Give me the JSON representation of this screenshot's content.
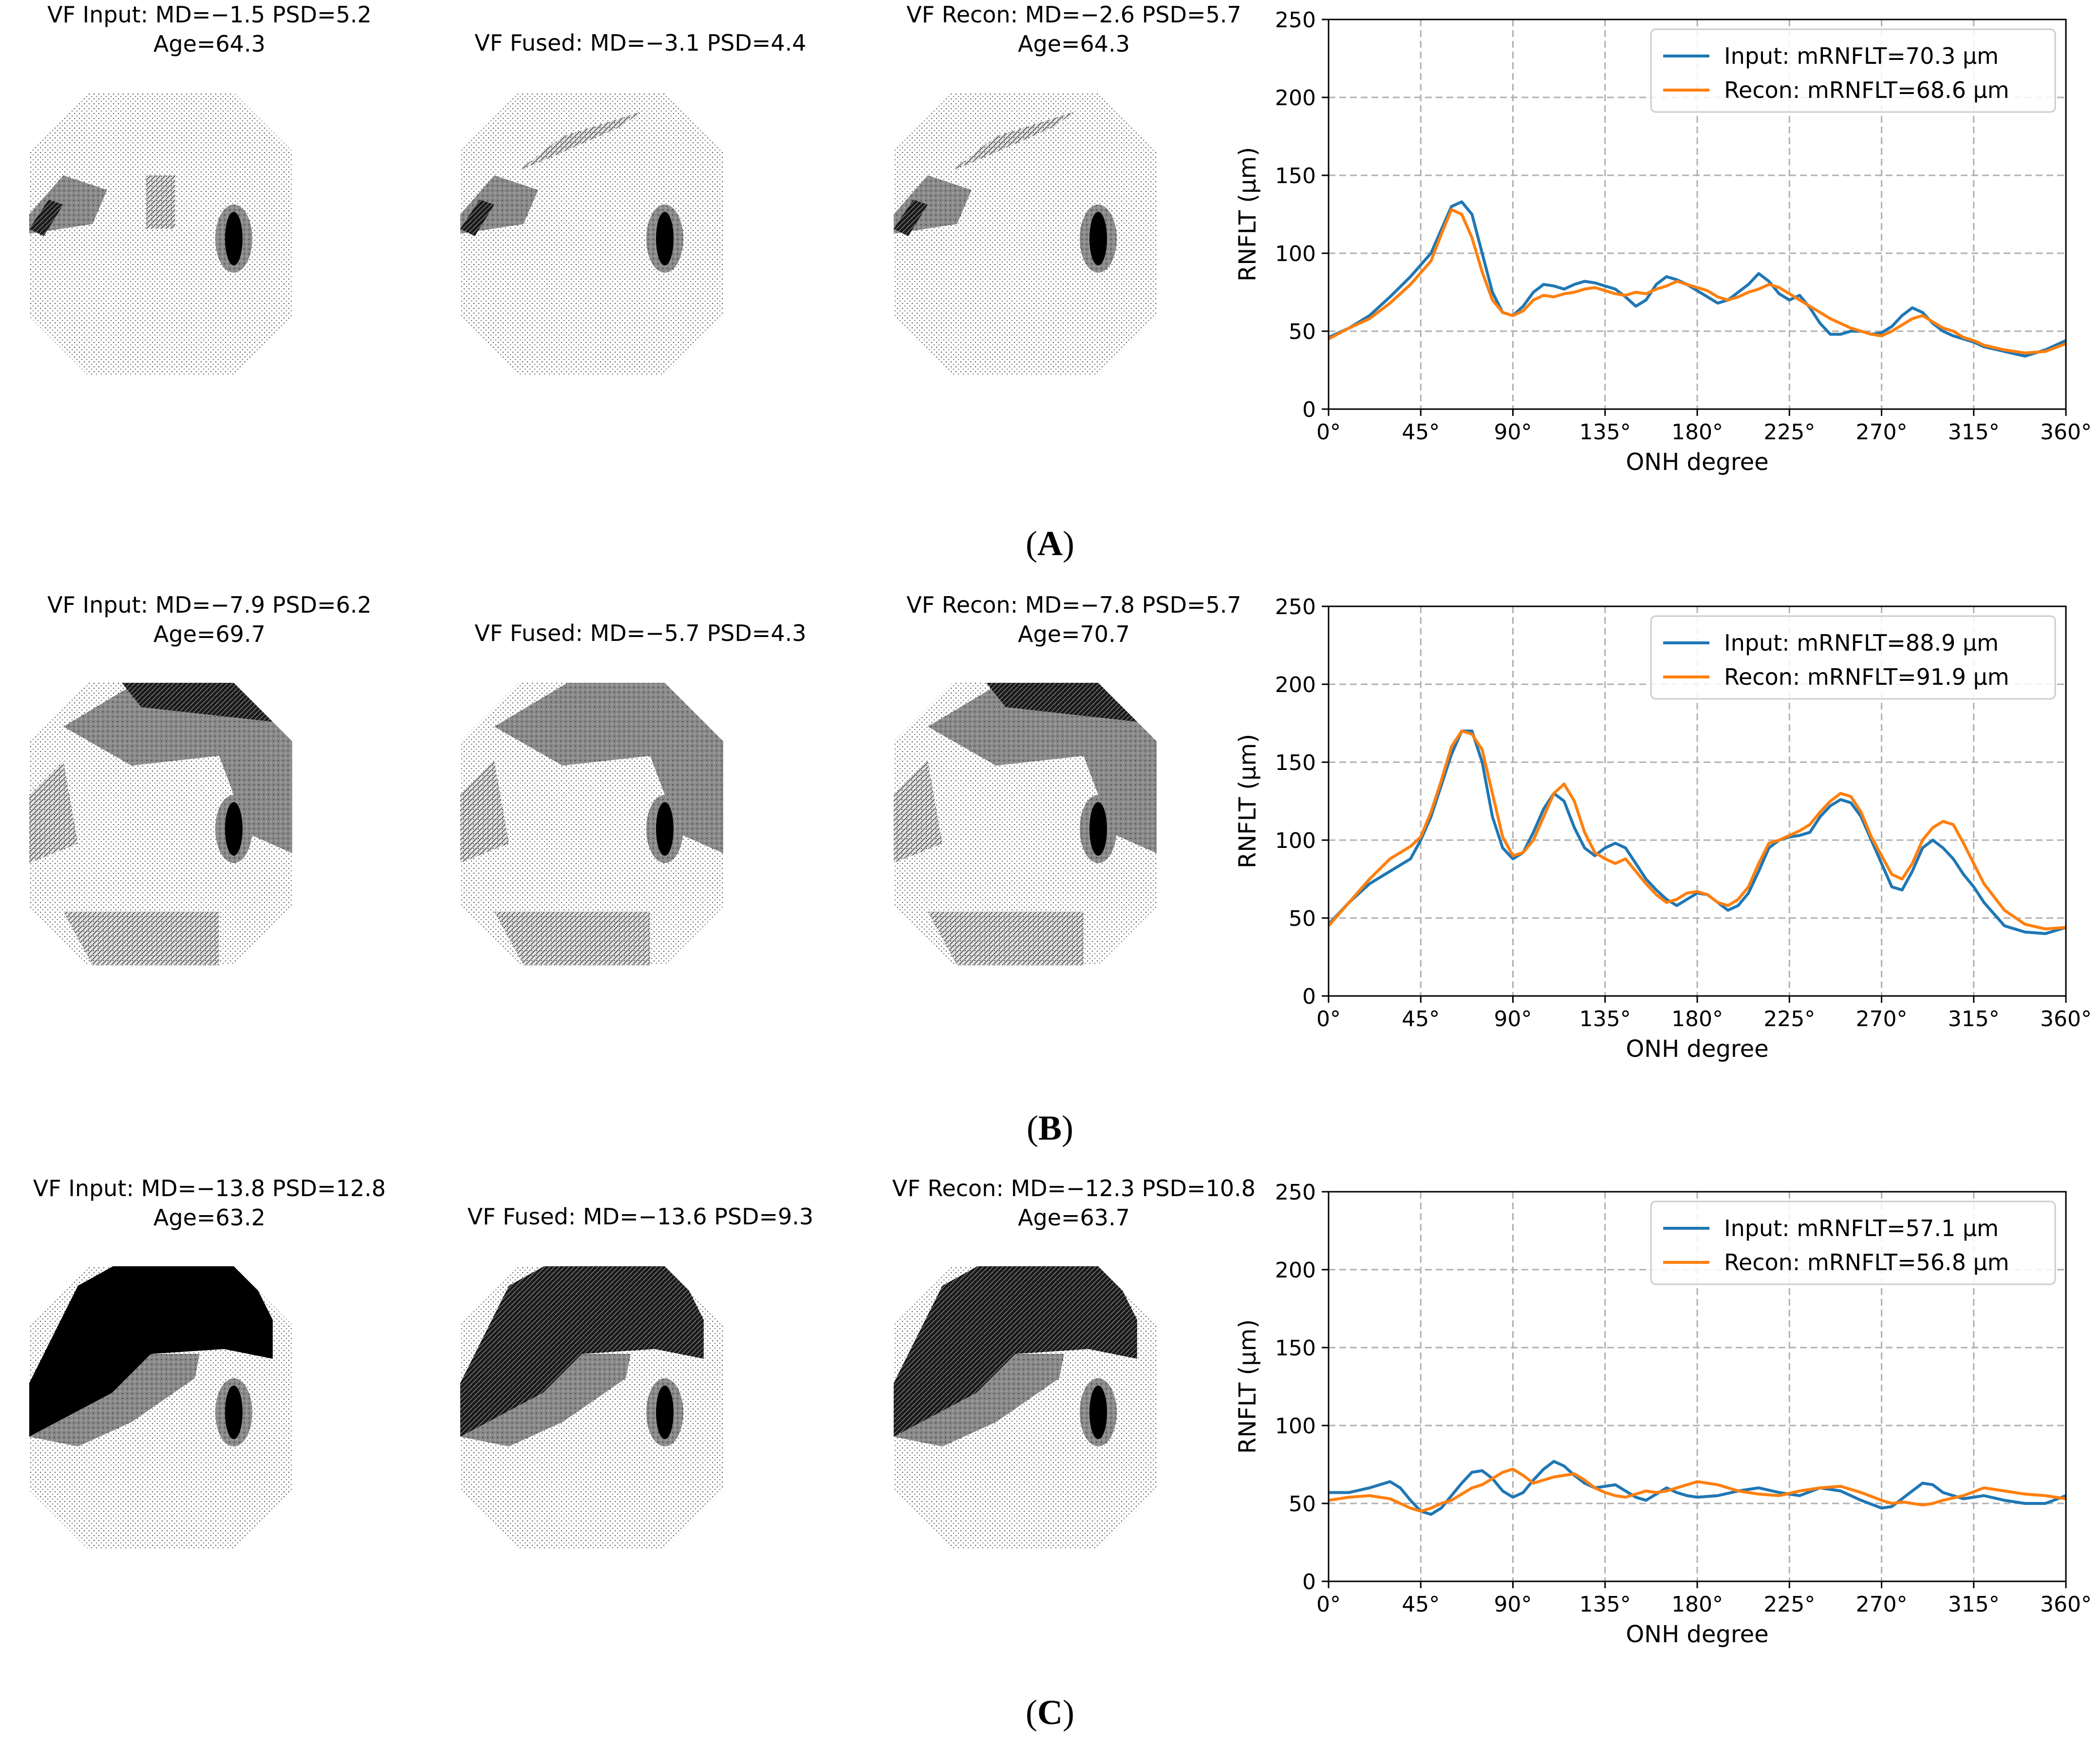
{
  "rows": [
    {
      "label_letter": "A",
      "vf": [
        {
          "title1": "VF Input: MD=−1.5 PSD=5.2",
          "title2": "Age=64.3",
          "severity": "mild",
          "variant": 0
        },
        {
          "title1": "VF Fused: MD=−3.1 PSD=4.4",
          "title2": "",
          "severity": "mild",
          "variant": 1
        },
        {
          "title1": "VF Recon: MD=−2.6 PSD=5.7",
          "title2": "Age=64.3",
          "severity": "mild",
          "variant": 2
        }
      ]
    },
    {
      "label_letter": "B",
      "vf": [
        {
          "title1": "VF Input: MD=−7.9 PSD=6.2",
          "title2": "Age=69.7",
          "severity": "moderate",
          "variant": 0
        },
        {
          "title1": "VF Fused: MD=−5.7 PSD=4.3",
          "title2": "",
          "severity": "moderate",
          "variant": 1
        },
        {
          "title1": "VF Recon: MD=−7.8 PSD=5.7",
          "title2": "Age=70.7",
          "severity": "moderate",
          "variant": 2
        }
      ]
    },
    {
      "label_letter": "C",
      "vf": [
        {
          "title1": "VF Input: MD=−13.8 PSD=12.8",
          "title2": "Age=63.2",
          "severity": "severe",
          "variant": 0
        },
        {
          "title1": "VF Fused: MD=−13.6 PSD=9.3",
          "title2": "",
          "severity": "severe",
          "variant": 1
        },
        {
          "title1": "VF Recon: MD=−12.3 PSD=10.8",
          "title2": "Age=63.7",
          "severity": "severe",
          "variant": 2
        }
      ]
    }
  ],
  "colors": {
    "input": "#1f77b4",
    "recon": "#ff7f0e",
    "grid": "#b0b0b0"
  },
  "chart_data": [
    {
      "type": "line",
      "xlabel": "ONH degree",
      "ylabel": "RNFLT (μm)",
      "xlim": [
        0,
        360
      ],
      "ylim": [
        0,
        250
      ],
      "xticks": [
        "0°",
        "45°",
        "90°",
        "135°",
        "180°",
        "225°",
        "270°",
        "315°",
        "360°"
      ],
      "yticks": [
        "0",
        "50",
        "100",
        "150",
        "200",
        "250"
      ],
      "grid": true,
      "legend_position": "top-right",
      "series": [
        {
          "name": "Input:  mRNFLT=70.3 μm",
          "x": [
            0,
            10,
            20,
            30,
            40,
            50,
            55,
            60,
            65,
            70,
            75,
            80,
            85,
            90,
            95,
            100,
            105,
            110,
            115,
            120,
            125,
            130,
            135,
            140,
            145,
            150,
            155,
            160,
            165,
            170,
            175,
            180,
            185,
            190,
            195,
            200,
            205,
            210,
            215,
            220,
            225,
            230,
            235,
            240,
            245,
            250,
            255,
            260,
            265,
            270,
            275,
            280,
            285,
            290,
            295,
            300,
            305,
            310,
            315,
            320,
            330,
            340,
            350,
            360
          ],
          "y": [
            46,
            52,
            60,
            72,
            85,
            100,
            115,
            130,
            133,
            125,
            100,
            75,
            62,
            60,
            66,
            75,
            80,
            79,
            77,
            80,
            82,
            81,
            79,
            77,
            72,
            66,
            70,
            80,
            85,
            83,
            80,
            76,
            72,
            68,
            70,
            75,
            80,
            87,
            82,
            74,
            70,
            73,
            65,
            55,
            48,
            48,
            50,
            50,
            48,
            49,
            53,
            60,
            65,
            62,
            55,
            50,
            47,
            45,
            43,
            40,
            37,
            34,
            38,
            44
          ]
        },
        {
          "name": "Recon: mRNFLT=68.6 μm",
          "x": [
            0,
            10,
            20,
            30,
            40,
            50,
            55,
            60,
            65,
            70,
            75,
            80,
            85,
            90,
            95,
            100,
            105,
            110,
            115,
            120,
            125,
            130,
            135,
            140,
            145,
            150,
            155,
            160,
            165,
            170,
            175,
            180,
            185,
            190,
            195,
            200,
            205,
            210,
            215,
            220,
            225,
            230,
            235,
            240,
            245,
            250,
            255,
            260,
            265,
            270,
            275,
            280,
            285,
            290,
            295,
            300,
            305,
            310,
            315,
            320,
            330,
            340,
            350,
            360
          ],
          "y": [
            45,
            52,
            58,
            68,
            80,
            95,
            112,
            128,
            125,
            110,
            88,
            70,
            62,
            60,
            63,
            70,
            73,
            72,
            74,
            75,
            77,
            78,
            76,
            74,
            73,
            75,
            74,
            77,
            79,
            82,
            80,
            78,
            76,
            72,
            70,
            72,
            75,
            77,
            80,
            78,
            74,
            70,
            66,
            62,
            58,
            55,
            52,
            50,
            48,
            47,
            50,
            54,
            58,
            60,
            56,
            52,
            50,
            46,
            44,
            41,
            38,
            36,
            37,
            42
          ]
        }
      ]
    },
    {
      "type": "line",
      "xlabel": "ONH degree",
      "ylabel": "RNFLT (μm)",
      "xlim": [
        0,
        360
      ],
      "ylim": [
        0,
        250
      ],
      "xticks": [
        "0°",
        "45°",
        "90°",
        "135°",
        "180°",
        "225°",
        "270°",
        "315°",
        "360°"
      ],
      "yticks": [
        "0",
        "50",
        "100",
        "150",
        "200",
        "250"
      ],
      "grid": true,
      "legend_position": "top-right",
      "series": [
        {
          "name": "Input:  mRNFLT=88.9 μm",
          "x": [
            0,
            10,
            20,
            30,
            40,
            45,
            50,
            55,
            60,
            65,
            70,
            75,
            80,
            85,
            90,
            95,
            100,
            105,
            110,
            115,
            120,
            125,
            130,
            135,
            140,
            145,
            150,
            155,
            160,
            165,
            170,
            175,
            180,
            185,
            190,
            195,
            200,
            205,
            210,
            215,
            220,
            225,
            230,
            235,
            240,
            245,
            250,
            255,
            260,
            265,
            270,
            275,
            280,
            285,
            290,
            295,
            300,
            305,
            310,
            315,
            320,
            330,
            340,
            350,
            360
          ],
          "y": [
            46,
            60,
            72,
            80,
            88,
            100,
            115,
            135,
            155,
            170,
            170,
            150,
            115,
            95,
            88,
            92,
            105,
            120,
            130,
            125,
            108,
            95,
            90,
            95,
            98,
            95,
            85,
            75,
            68,
            62,
            58,
            62,
            66,
            65,
            60,
            55,
            58,
            66,
            80,
            95,
            100,
            102,
            103,
            105,
            115,
            122,
            126,
            124,
            115,
            100,
            85,
            70,
            68,
            80,
            95,
            100,
            95,
            88,
            78,
            70,
            60,
            45,
            41,
            40,
            44
          ]
        },
        {
          "name": "Recon: mRNFLT=91.9 μm",
          "x": [
            0,
            10,
            20,
            30,
            40,
            45,
            50,
            55,
            60,
            65,
            70,
            75,
            80,
            85,
            90,
            95,
            100,
            105,
            110,
            115,
            120,
            125,
            130,
            135,
            140,
            145,
            150,
            155,
            160,
            165,
            170,
            175,
            180,
            185,
            190,
            195,
            200,
            205,
            210,
            215,
            220,
            225,
            230,
            235,
            240,
            245,
            250,
            255,
            260,
            265,
            270,
            275,
            280,
            285,
            290,
            295,
            300,
            305,
            310,
            315,
            320,
            330,
            340,
            350,
            360
          ],
          "y": [
            45,
            60,
            75,
            88,
            96,
            102,
            118,
            138,
            160,
            170,
            168,
            158,
            130,
            102,
            90,
            92,
            100,
            115,
            130,
            136,
            125,
            105,
            92,
            88,
            85,
            88,
            80,
            72,
            65,
            60,
            62,
            66,
            67,
            65,
            60,
            58,
            62,
            70,
            85,
            98,
            100,
            103,
            106,
            110,
            118,
            125,
            130,
            128,
            118,
            102,
            90,
            78,
            75,
            85,
            100,
            108,
            112,
            110,
            98,
            85,
            72,
            55,
            46,
            43,
            44
          ]
        }
      ]
    },
    {
      "type": "line",
      "xlabel": "ONH degree",
      "ylabel": "RNFLT (μm)",
      "xlim": [
        0,
        360
      ],
      "ylim": [
        0,
        250
      ],
      "xticks": [
        "0°",
        "45°",
        "90°",
        "135°",
        "180°",
        "225°",
        "270°",
        "315°",
        "360°"
      ],
      "yticks": [
        "0",
        "50",
        "100",
        "150",
        "200",
        "250"
      ],
      "grid": true,
      "legend_position": "top-right",
      "series": [
        {
          "name": "Input:  mRNFLT=57.1 μm",
          "x": [
            0,
            10,
            20,
            30,
            35,
            40,
            45,
            50,
            55,
            60,
            65,
            70,
            75,
            80,
            85,
            90,
            95,
            100,
            105,
            110,
            115,
            120,
            125,
            130,
            135,
            140,
            145,
            150,
            155,
            160,
            165,
            170,
            175,
            180,
            190,
            200,
            210,
            220,
            230,
            240,
            250,
            260,
            270,
            275,
            280,
            285,
            290,
            295,
            300,
            310,
            320,
            330,
            340,
            350,
            360
          ],
          "y": [
            57,
            57,
            60,
            64,
            60,
            52,
            45,
            43,
            47,
            55,
            63,
            70,
            71,
            66,
            58,
            54,
            57,
            65,
            72,
            77,
            74,
            68,
            63,
            60,
            61,
            62,
            58,
            54,
            52,
            56,
            60,
            57,
            55,
            54,
            55,
            58,
            60,
            57,
            55,
            60,
            58,
            52,
            47,
            48,
            53,
            58,
            63,
            62,
            57,
            53,
            55,
            52,
            50,
            50,
            55
          ]
        },
        {
          "name": "Recon: mRNFLT=56.8 μm",
          "x": [
            0,
            10,
            20,
            30,
            35,
            40,
            45,
            50,
            55,
            60,
            65,
            70,
            75,
            80,
            85,
            90,
            95,
            100,
            105,
            110,
            115,
            120,
            125,
            130,
            135,
            140,
            145,
            150,
            155,
            160,
            165,
            170,
            175,
            180,
            190,
            200,
            210,
            220,
            230,
            240,
            250,
            260,
            270,
            275,
            280,
            285,
            290,
            295,
            300,
            310,
            320,
            330,
            340,
            350,
            360
          ],
          "y": [
            52,
            54,
            55,
            53,
            50,
            47,
            45,
            47,
            50,
            52,
            56,
            60,
            62,
            66,
            70,
            72,
            68,
            63,
            65,
            67,
            68,
            69,
            65,
            60,
            57,
            55,
            54,
            56,
            58,
            57,
            58,
            60,
            62,
            64,
            62,
            58,
            56,
            55,
            58,
            60,
            61,
            57,
            52,
            50,
            51,
            50,
            49,
            50,
            52,
            55,
            60,
            58,
            56,
            55,
            53
          ]
        }
      ]
    }
  ],
  "panel_label_open": "(",
  "panel_label_close": ")"
}
